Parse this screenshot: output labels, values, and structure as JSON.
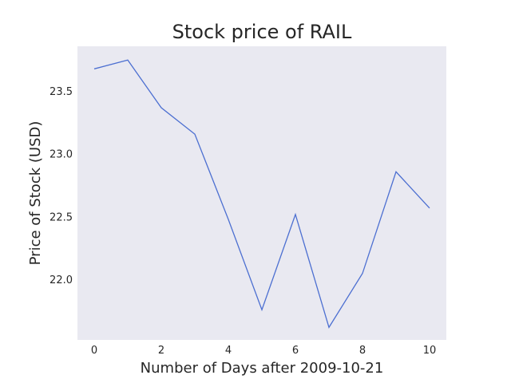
{
  "chart_data": {
    "type": "line",
    "title": "Stock price of RAIL",
    "xlabel": "Number of Days after 2009-10-21",
    "ylabel": "Price of Stock (USD)",
    "x": [
      0,
      1,
      2,
      3,
      4,
      5,
      6,
      7,
      8,
      9,
      10
    ],
    "series": [
      {
        "values": [
          23.68,
          23.75,
          23.37,
          23.16,
          22.48,
          21.76,
          22.52,
          21.62,
          22.05,
          22.86,
          22.57
        ]
      }
    ],
    "xticks": [
      "0",
      "2",
      "4",
      "6",
      "8",
      "10"
    ],
    "yticks": [
      "22.0",
      "22.5",
      "23.0",
      "23.5"
    ],
    "xlim": [
      -0.5,
      10.5
    ],
    "ylim": [
      21.52,
      23.86
    ],
    "grid": false,
    "legend": "none",
    "colors": {
      "line": "#4c6fd1",
      "plot_background": "#e9e9f1"
    }
  }
}
